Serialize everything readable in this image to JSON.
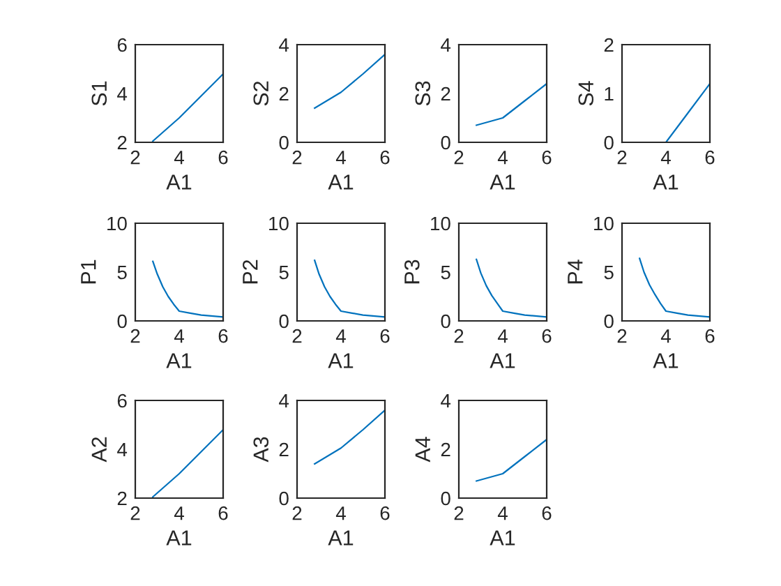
{
  "chart_data": [
    {
      "type": "line",
      "xlabel": "A1",
      "ylabel": "S1",
      "x": [
        2.8,
        4,
        5,
        6
      ],
      "series": [
        {
          "color": "#0072bd",
          "values": [
            2.05,
            3.0,
            3.9,
            4.8
          ]
        }
      ],
      "xlim": [
        2,
        6
      ],
      "xticks": [
        2,
        4,
        6
      ],
      "ylim": [
        2,
        6
      ],
      "yticks": [
        2,
        4,
        6
      ]
    },
    {
      "type": "line",
      "xlabel": "A1",
      "ylabel": "S2",
      "x": [
        2.8,
        4,
        5,
        6
      ],
      "series": [
        {
          "color": "#0072bd",
          "values": [
            1.4,
            2.05,
            2.8,
            3.6
          ]
        }
      ],
      "xlim": [
        2,
        6
      ],
      "xticks": [
        2,
        4,
        6
      ],
      "ylim": [
        0,
        4
      ],
      "yticks": [
        0,
        2,
        4
      ]
    },
    {
      "type": "line",
      "xlabel": "A1",
      "ylabel": "S3",
      "x": [
        2.8,
        4,
        5,
        6
      ],
      "series": [
        {
          "color": "#0072bd",
          "values": [
            0.7,
            1.0,
            1.7,
            2.4
          ]
        }
      ],
      "xlim": [
        2,
        6
      ],
      "xticks": [
        2,
        4,
        6
      ],
      "ylim": [
        0,
        4
      ],
      "yticks": [
        0,
        2,
        4
      ]
    },
    {
      "type": "line",
      "xlabel": "A1",
      "ylabel": "S4",
      "x": [
        2.8,
        4,
        4.5,
        5,
        6
      ],
      "series": [
        {
          "color": "#0072bd",
          "values": [
            0,
            0,
            0.3,
            0.6,
            1.2
          ]
        }
      ],
      "xlim": [
        2,
        6
      ],
      "xticks": [
        2,
        4,
        6
      ],
      "ylim": [
        0,
        2
      ],
      "yticks": [
        0,
        1,
        2
      ]
    },
    {
      "type": "line",
      "xlabel": "A1",
      "ylabel": "P1",
      "x": [
        2.8,
        3,
        3.25,
        3.5,
        3.75,
        4,
        4.5,
        5,
        6
      ],
      "series": [
        {
          "color": "#0072bd",
          "values": [
            6.1,
            4.8,
            3.5,
            2.5,
            1.7,
            1.0,
            0.8,
            0.6,
            0.4
          ]
        }
      ],
      "xlim": [
        2,
        6
      ],
      "xticks": [
        2,
        4,
        6
      ],
      "ylim": [
        0,
        10
      ],
      "yticks": [
        0,
        5,
        10
      ]
    },
    {
      "type": "line",
      "xlabel": "A1",
      "ylabel": "P2",
      "x": [
        2.8,
        3,
        3.25,
        3.5,
        3.75,
        4,
        4.5,
        5,
        6
      ],
      "series": [
        {
          "color": "#0072bd",
          "values": [
            6.2,
            4.8,
            3.5,
            2.5,
            1.7,
            1.0,
            0.8,
            0.6,
            0.4
          ]
        }
      ],
      "xlim": [
        2,
        6
      ],
      "xticks": [
        2,
        4,
        6
      ],
      "ylim": [
        0,
        10
      ],
      "yticks": [
        0,
        5,
        10
      ]
    },
    {
      "type": "line",
      "xlabel": "A1",
      "ylabel": "P3",
      "x": [
        2.8,
        3,
        3.25,
        3.5,
        3.75,
        4,
        4.5,
        5,
        6
      ],
      "series": [
        {
          "color": "#0072bd",
          "values": [
            6.3,
            4.9,
            3.6,
            2.6,
            1.8,
            1.0,
            0.8,
            0.6,
            0.4
          ]
        }
      ],
      "xlim": [
        2,
        6
      ],
      "xticks": [
        2,
        4,
        6
      ],
      "ylim": [
        0,
        10
      ],
      "yticks": [
        0,
        5,
        10
      ]
    },
    {
      "type": "line",
      "xlabel": "A1",
      "ylabel": "P4",
      "x": [
        2.8,
        3,
        3.25,
        3.5,
        3.75,
        4,
        4.5,
        5,
        6
      ],
      "series": [
        {
          "color": "#0072bd",
          "values": [
            6.4,
            5.0,
            3.7,
            2.7,
            1.8,
            1.0,
            0.8,
            0.6,
            0.4
          ]
        }
      ],
      "xlim": [
        2,
        6
      ],
      "xticks": [
        2,
        4,
        6
      ],
      "ylim": [
        0,
        10
      ],
      "yticks": [
        0,
        5,
        10
      ]
    },
    {
      "type": "line",
      "xlabel": "A1",
      "ylabel": "A2",
      "x": [
        2.8,
        4,
        5,
        6
      ],
      "series": [
        {
          "color": "#0072bd",
          "values": [
            2.05,
            3.0,
            3.9,
            4.8
          ]
        }
      ],
      "xlim": [
        2,
        6
      ],
      "xticks": [
        2,
        4,
        6
      ],
      "ylim": [
        2,
        6
      ],
      "yticks": [
        2,
        4,
        6
      ]
    },
    {
      "type": "line",
      "xlabel": "A1",
      "ylabel": "A3",
      "x": [
        2.8,
        4,
        5,
        6
      ],
      "series": [
        {
          "color": "#0072bd",
          "values": [
            1.4,
            2.05,
            2.8,
            3.6
          ]
        }
      ],
      "xlim": [
        2,
        6
      ],
      "xticks": [
        2,
        4,
        6
      ],
      "ylim": [
        0,
        4
      ],
      "yticks": [
        0,
        2,
        4
      ]
    },
    {
      "type": "line",
      "xlabel": "A1",
      "ylabel": "A4",
      "x": [
        2.8,
        4,
        5,
        6
      ],
      "series": [
        {
          "color": "#0072bd",
          "values": [
            0.7,
            1.0,
            1.7,
            2.4
          ]
        }
      ],
      "xlim": [
        2,
        6
      ],
      "xticks": [
        2,
        4,
        6
      ],
      "ylim": [
        0,
        4
      ],
      "yticks": [
        0,
        2,
        4
      ]
    }
  ]
}
